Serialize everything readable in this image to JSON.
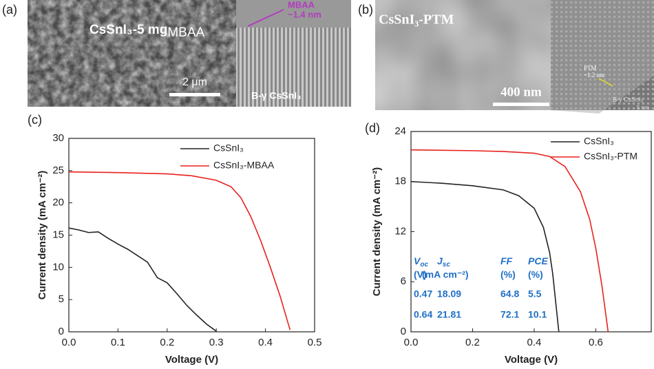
{
  "panels": [
    {
      "label": "(a)",
      "title": "CsSnI₃-5 mg",
      "title_suffix": "MBAA",
      "inset_label": "MBAA",
      "inset_thickness": "~1.4 nm",
      "scale_bar": "2 μm",
      "inset_phase": "B-γ CsSnI₃"
    },
    {
      "label": "(b)",
      "title": "CsSnI₃-PTM",
      "inset_label": "PTM",
      "inset_thickness": "~1.2 nm",
      "scale_bar": "400 nm",
      "inset_phase": "B-γ CsSnI₃",
      "inset_scale": "5 nm"
    }
  ],
  "chart_data": [
    {
      "type": "line",
      "label": "(c)",
      "xlabel": "Voltage (V)",
      "ylabel": "Current density (mA cm⁻²)",
      "xlim": [
        0,
        0.5
      ],
      "xticks": [
        {
          "value": 0,
          "label": "0.0"
        },
        0.1,
        0.2,
        0.3,
        0.4,
        0.5
      ],
      "ylim": [
        0,
        30
      ],
      "yticks": [
        0,
        5,
        10,
        15,
        20,
        25,
        30
      ],
      "legend": "upper right",
      "series": [
        {
          "name": "CsSnI₃",
          "color": "#222222",
          "x": [
            0,
            0.02,
            0.04,
            0.06,
            0.08,
            0.1,
            0.12,
            0.14,
            0.16,
            0.18,
            0.2,
            0.22,
            0.24,
            0.26,
            0.28,
            0.3
          ],
          "values": [
            16.1,
            15.8,
            15.4,
            15.5,
            14.5,
            13.6,
            12.8,
            11.8,
            10.8,
            8.4,
            7.6,
            5.9,
            4.1,
            2.6,
            1.2,
            0.1
          ]
        },
        {
          "name": "CsSnI₃-MBAA",
          "color": "#e8201c",
          "x": [
            0,
            0.1,
            0.2,
            0.25,
            0.3,
            0.33,
            0.35,
            0.37,
            0.39,
            0.41,
            0.43,
            0.45
          ],
          "values": [
            24.8,
            24.7,
            24.5,
            24.2,
            23.5,
            22.5,
            20.8,
            17.9,
            14.2,
            10.0,
            5.5,
            0.3
          ]
        }
      ]
    },
    {
      "type": "line",
      "label": "(d)",
      "xlabel": "Voltage (V)",
      "ylabel": "Current density (mA cm⁻²)",
      "xlim": [
        0,
        0.78
      ],
      "xticks": [
        {
          "value": 0,
          "label": "0.0"
        },
        0.2,
        0.4,
        0.6
      ],
      "ylim": [
        0,
        24
      ],
      "yticks": [
        0,
        6,
        12,
        18,
        24
      ],
      "legend": "upper right",
      "series": [
        {
          "name": "CsSnI₃",
          "color": "#222222",
          "x": [
            0,
            0.1,
            0.2,
            0.3,
            0.35,
            0.4,
            0.43,
            0.45,
            0.46,
            0.47,
            0.48
          ],
          "values": [
            18.0,
            17.8,
            17.5,
            17.0,
            16.3,
            14.8,
            12.5,
            9.5,
            7.0,
            3.5,
            0
          ]
        },
        {
          "name": "CsSnI₃-PTM",
          "color": "#e8201c",
          "x": [
            0,
            0.2,
            0.3,
            0.4,
            0.45,
            0.5,
            0.55,
            0.58,
            0.6,
            0.62,
            0.64
          ],
          "values": [
            21.8,
            21.7,
            21.6,
            21.4,
            21.0,
            19.8,
            16.8,
            13.5,
            10.0,
            5.5,
            0
          ]
        }
      ],
      "table": {
        "columns": [
          {
            "symbol": "V",
            "sub": "oc",
            "unit": "(V)"
          },
          {
            "symbol": "J",
            "sub": "sc",
            "unit": "(mA cm⁻²)"
          },
          {
            "symbol": "FF",
            "unit": "(%)"
          },
          {
            "symbol": "PCE",
            "unit": "(%)"
          }
        ],
        "rows": [
          [
            0.47,
            18.09,
            64.8,
            5.5
          ],
          [
            0.64,
            21.81,
            72.1,
            10.1
          ]
        ]
      }
    }
  ]
}
